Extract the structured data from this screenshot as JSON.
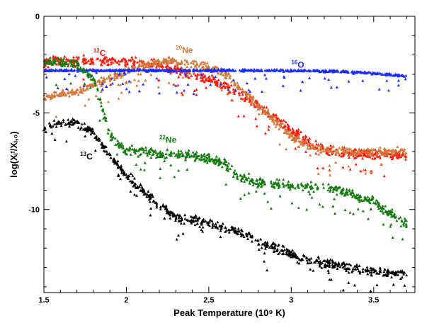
{
  "chart_data": {
    "type": "scatter",
    "title": "",
    "xlabel": "Peak Temperature (10⁹ K)",
    "ylabel": "log(Xᵢᶠ/Xᵢ,₀)",
    "xlim": [
      1.5,
      3.75
    ],
    "ylim": [
      -14.3,
      0
    ],
    "x_ticks": [
      1.5,
      2,
      2.5,
      3,
      3.5
    ],
    "x_tick_labels": [
      "1.5",
      "2",
      "2.5",
      "3",
      "3.5"
    ],
    "y_ticks": [
      0,
      -5,
      -10
    ],
    "y_tick_labels": [
      "0",
      "-5",
      "-10"
    ],
    "grid": false,
    "marker": "triangle",
    "series": [
      {
        "name": "12C",
        "sup": "12",
        "base": "C",
        "color": "#ff1a0a",
        "label_at": [
          1.8,
          -2.05
        ],
        "trend_x": [
          1.5,
          1.8,
          2.0,
          2.2,
          2.4,
          2.6,
          2.8,
          3.0,
          3.1,
          3.2,
          3.3,
          3.4,
          3.7
        ],
        "trend_y": [
          -2.3,
          -2.3,
          -2.35,
          -2.5,
          -3.0,
          -3.6,
          -4.6,
          -5.9,
          -6.5,
          -6.9,
          -7.05,
          -7.1,
          -7.2
        ],
        "spread": 0.35
      },
      {
        "name": "20Ne",
        "sup": "20",
        "base": "Ne",
        "color": "#d2783a",
        "label_at": [
          2.3,
          -1.9
        ],
        "trend_x": [
          1.5,
          1.7,
          1.9,
          2.1,
          2.3,
          2.5,
          2.6,
          2.7,
          2.8,
          2.9,
          3.0,
          3.1,
          3.2,
          3.4,
          3.7
        ],
        "trend_y": [
          -4.2,
          -3.9,
          -3.2,
          -2.5,
          -2.3,
          -2.6,
          -3.0,
          -3.8,
          -4.6,
          -5.4,
          -6.2,
          -6.7,
          -6.9,
          -7.0,
          -7.0
        ],
        "spread": 0.3
      },
      {
        "name": "16O",
        "sup": "16",
        "base": "O",
        "color": "#1a2cff",
        "label_at": [
          3.0,
          -2.65
        ],
        "trend_x": [
          1.5,
          2.0,
          2.5,
          3.0,
          3.3,
          3.5,
          3.7
        ],
        "trend_y": [
          -2.8,
          -2.8,
          -2.8,
          -2.8,
          -2.85,
          -2.95,
          -3.1
        ],
        "spread": 0.08
      },
      {
        "name": "22Ne",
        "sup": "22",
        "base": "Ne",
        "color": "#157a10",
        "label_at": [
          2.2,
          -6.55
        ],
        "trend_x": [
          1.5,
          1.7,
          1.8,
          1.85,
          1.9,
          2.0,
          2.2,
          2.4,
          2.6,
          2.7,
          2.9,
          3.1,
          3.3,
          3.5,
          3.7
        ],
        "trend_y": [
          -2.3,
          -2.5,
          -3.2,
          -4.6,
          -6.2,
          -6.9,
          -7.1,
          -7.2,
          -7.6,
          -8.4,
          -8.7,
          -8.8,
          -9.0,
          -9.6,
          -10.8
        ],
        "spread": 0.35
      },
      {
        "name": "13C",
        "sup": "13",
        "base": "C",
        "color": "#000000",
        "label_at": [
          1.72,
          -7.4
        ],
        "trend_x": [
          1.5,
          1.6,
          1.7,
          1.8,
          1.9,
          2.0,
          2.1,
          2.2,
          2.3,
          2.5,
          2.7,
          2.9,
          3.1,
          3.3,
          3.5,
          3.7
        ],
        "trend_y": [
          -5.8,
          -5.5,
          -5.5,
          -6.0,
          -7.2,
          -8.2,
          -9.0,
          -9.8,
          -10.4,
          -10.7,
          -11.2,
          -12.0,
          -12.6,
          -12.9,
          -13.2,
          -13.4
        ],
        "spread": 0.35
      }
    ]
  }
}
